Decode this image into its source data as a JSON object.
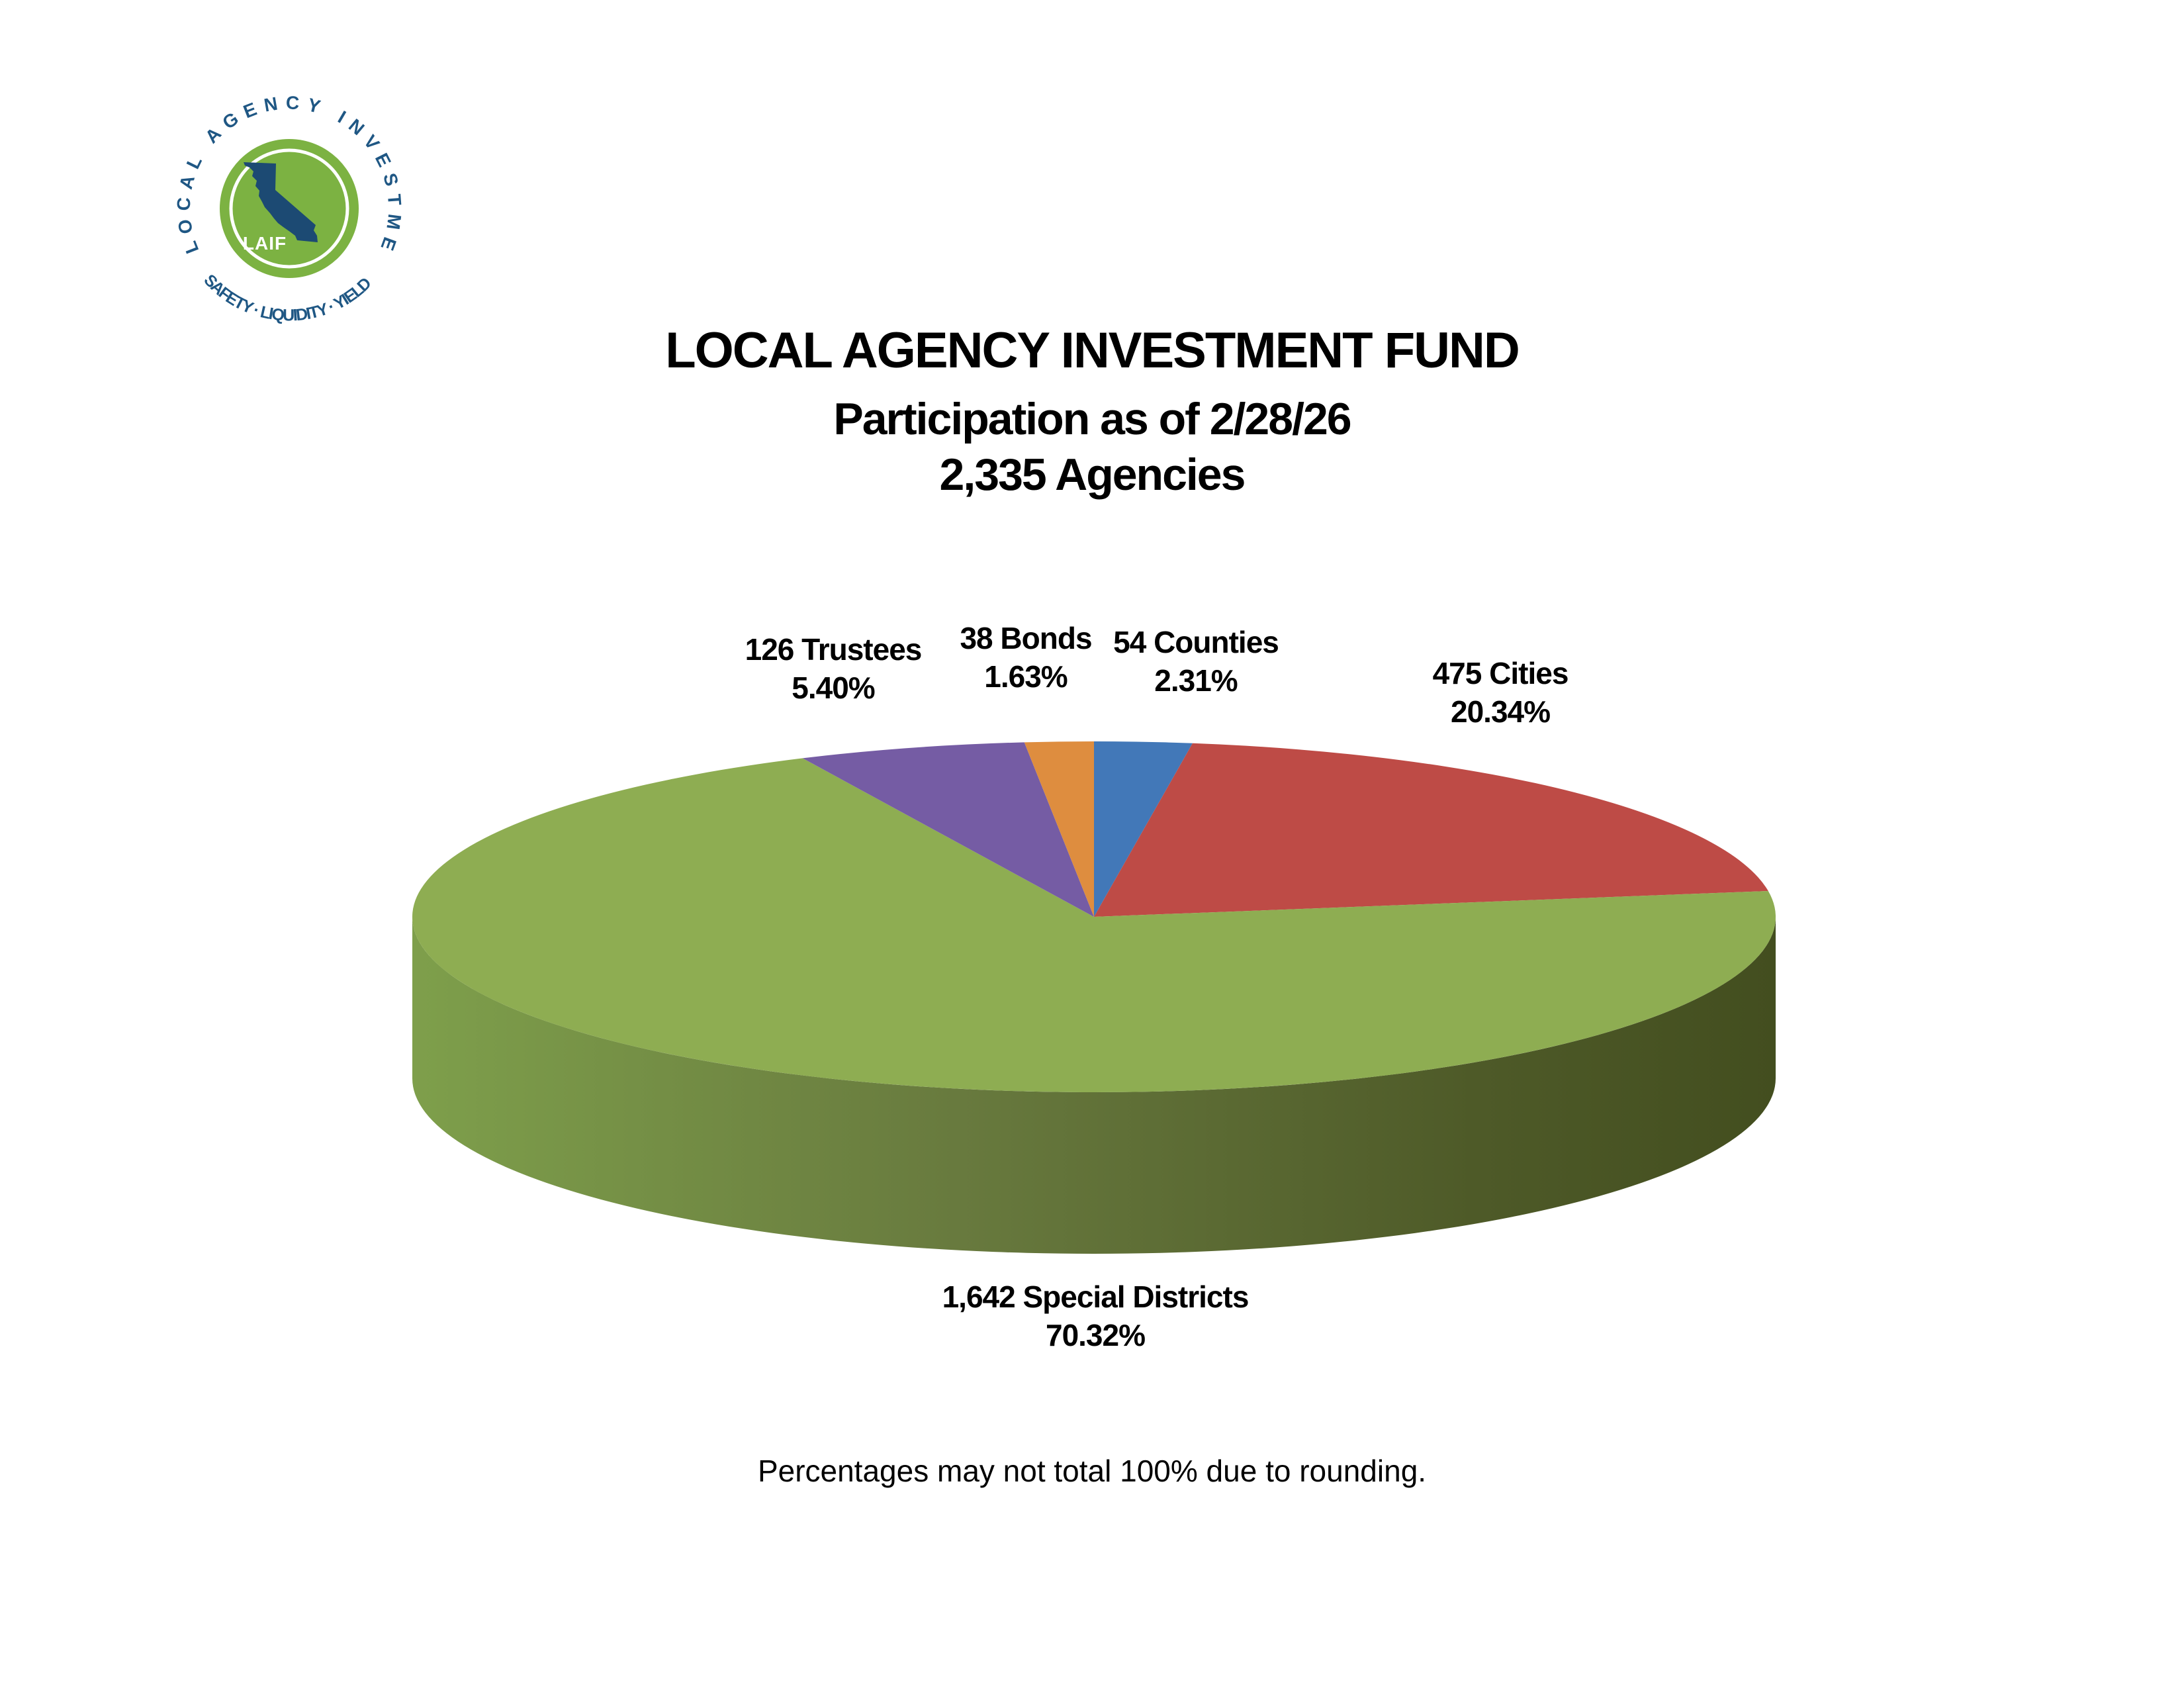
{
  "logo": {
    "ring_text_top": "LOCAL AGENCY INVESTMENT FUND",
    "ring_text_bottom": "SAFETY · LIQUIDITY · YIELD",
    "acronym": "LAIF",
    "disc_color": "#7CB242",
    "text_color": "#1F5784",
    "state_color": "#1C4A73"
  },
  "chart_data": {
    "type": "pie",
    "style": "3d",
    "title": "LOCAL AGENCY INVESTMENT FUND",
    "subtitle": "Participation as of 2/28/26",
    "total_label": "2,335 Agencies",
    "total_agencies": 2335,
    "direction": "clockwise",
    "start_angle_deg": 0,
    "slices": [
      {
        "key": "counties",
        "label": "54 Counties",
        "count": 54,
        "value": 2.31,
        "pct_label": "2.31%",
        "color": "#4278B8"
      },
      {
        "key": "cities",
        "label": "475 Cities",
        "count": 475,
        "value": 20.34,
        "pct_label": "20.34%",
        "color": "#BE4B46"
      },
      {
        "key": "special_districts",
        "label": "1,642 Special Districts",
        "count": 1642,
        "value": 70.32,
        "pct_label": "70.32%",
        "color": "#8EAD52"
      },
      {
        "key": "trustees",
        "label": "126 Trustees",
        "count": 126,
        "value": 5.4,
        "pct_label": "5.40%",
        "color": "#755CA4"
      },
      {
        "key": "bonds",
        "label": "38 Bonds",
        "count": 38,
        "value": 1.63,
        "pct_label": "1.63%",
        "color": "#DE8D3F"
      }
    ],
    "footnote": "Percentages may not total 100% due to rounding."
  }
}
